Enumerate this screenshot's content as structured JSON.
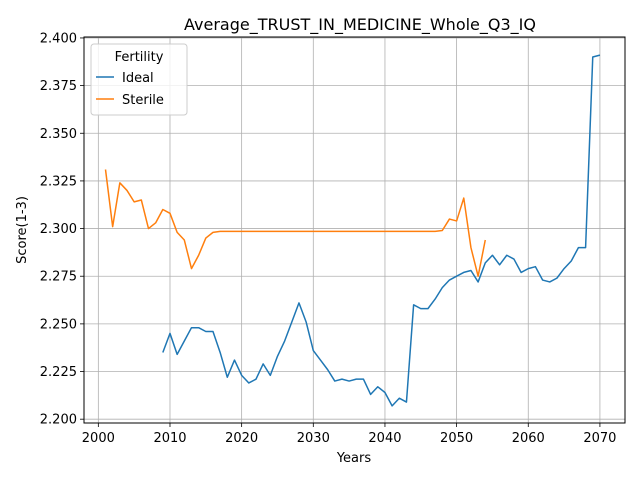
{
  "chart_data": {
    "type": "line",
    "title": "Average_TRUST_IN_MEDICINE_Whole_Q3_IQ",
    "xlabel": "Years",
    "ylabel": "Score(1-3)",
    "xlim": [
      1998,
      2073.5
    ],
    "ylim": [
      2.198,
      2.4005
    ],
    "xticks": [
      2000,
      2010,
      2020,
      2030,
      2040,
      2050,
      2060,
      2070
    ],
    "yticks": [
      2.2,
      2.225,
      2.25,
      2.275,
      2.3,
      2.325,
      2.35,
      2.375,
      2.4
    ],
    "grid": true,
    "legend": {
      "title": "Fertility",
      "position": "top-left"
    },
    "series": [
      {
        "name": "Ideal",
        "color": "#1f77b4",
        "points": [
          [
            2009,
            2.235
          ],
          [
            2010,
            2.245
          ],
          [
            2011,
            2.234
          ],
          [
            2012,
            2.241
          ],
          [
            2013,
            2.248
          ],
          [
            2014,
            2.248
          ],
          [
            2015,
            2.246
          ],
          [
            2016,
            2.246
          ],
          [
            2017,
            2.235
          ],
          [
            2018,
            2.222
          ],
          [
            2019,
            2.231
          ],
          [
            2020,
            2.223
          ],
          [
            2021,
            2.219
          ],
          [
            2022,
            2.221
          ],
          [
            2023,
            2.229
          ],
          [
            2024,
            2.223
          ],
          [
            2025,
            2.233
          ],
          [
            2026,
            2.241
          ],
          [
            2027,
            2.251
          ],
          [
            2028,
            2.261
          ],
          [
            2029,
            2.251
          ],
          [
            2030,
            2.236
          ],
          [
            2031,
            2.231
          ],
          [
            2032,
            2.226
          ],
          [
            2033,
            2.22
          ],
          [
            2034,
            2.221
          ],
          [
            2035,
            2.22
          ],
          [
            2036,
            2.221
          ],
          [
            2037,
            2.221
          ],
          [
            2038,
            2.213
          ],
          [
            2039,
            2.217
          ],
          [
            2040,
            2.214
          ],
          [
            2041,
            2.207
          ],
          [
            2042,
            2.211
          ],
          [
            2043,
            2.209
          ],
          [
            2044,
            2.26
          ],
          [
            2045,
            2.258
          ],
          [
            2046,
            2.258
          ],
          [
            2047,
            2.263
          ],
          [
            2048,
            2.269
          ],
          [
            2049,
            2.273
          ],
          [
            2050,
            2.275
          ],
          [
            2051,
            2.277
          ],
          [
            2052,
            2.278
          ],
          [
            2053,
            2.272
          ],
          [
            2054,
            2.282
          ],
          [
            2055,
            2.286
          ],
          [
            2056,
            2.281
          ],
          [
            2057,
            2.286
          ],
          [
            2058,
            2.284
          ],
          [
            2059,
            2.277
          ],
          [
            2060,
            2.279
          ],
          [
            2061,
            2.28
          ],
          [
            2062,
            2.273
          ],
          [
            2063,
            2.272
          ],
          [
            2064,
            2.274
          ],
          [
            2065,
            2.279
          ],
          [
            2066,
            2.283
          ],
          [
            2067,
            2.29
          ],
          [
            2068,
            2.29
          ],
          [
            2069,
            2.39
          ],
          [
            2070,
            2.391
          ]
        ]
      },
      {
        "name": "Sterile",
        "color": "#ff7f0e",
        "points": [
          [
            2001,
            2.331
          ],
          [
            2002,
            2.301
          ],
          [
            2003,
            2.324
          ],
          [
            2004,
            2.32
          ],
          [
            2005,
            2.314
          ],
          [
            2006,
            2.315
          ],
          [
            2007,
            2.3
          ],
          [
            2008,
            2.303
          ],
          [
            2009,
            2.31
          ],
          [
            2010,
            2.308
          ],
          [
            2011,
            2.298
          ],
          [
            2012,
            2.294
          ],
          [
            2013,
            2.279
          ],
          [
            2014,
            2.286
          ],
          [
            2015,
            2.295
          ],
          [
            2016,
            2.298
          ],
          [
            2017,
            2.2985
          ],
          [
            2018,
            2.2985
          ],
          [
            2019,
            2.2985
          ],
          [
            2020,
            2.2985
          ],
          [
            2021,
            2.2985
          ],
          [
            2022,
            2.2985
          ],
          [
            2023,
            2.2985
          ],
          [
            2024,
            2.2985
          ],
          [
            2025,
            2.2985
          ],
          [
            2026,
            2.2985
          ],
          [
            2027,
            2.2985
          ],
          [
            2028,
            2.2985
          ],
          [
            2029,
            2.2985
          ],
          [
            2030,
            2.2985
          ],
          [
            2031,
            2.2985
          ],
          [
            2032,
            2.2985
          ],
          [
            2033,
            2.2985
          ],
          [
            2034,
            2.2985
          ],
          [
            2035,
            2.2985
          ],
          [
            2036,
            2.2985
          ],
          [
            2037,
            2.2985
          ],
          [
            2038,
            2.2985
          ],
          [
            2039,
            2.2985
          ],
          [
            2040,
            2.2985
          ],
          [
            2041,
            2.2985
          ],
          [
            2042,
            2.2985
          ],
          [
            2043,
            2.2985
          ],
          [
            2044,
            2.2985
          ],
          [
            2045,
            2.2985
          ],
          [
            2046,
            2.2985
          ],
          [
            2047,
            2.2985
          ],
          [
            2048,
            2.299
          ],
          [
            2049,
            2.305
          ],
          [
            2050,
            2.304
          ],
          [
            2051,
            2.316
          ],
          [
            2052,
            2.29
          ],
          [
            2053,
            2.275
          ],
          [
            2054,
            2.294
          ]
        ]
      }
    ]
  }
}
